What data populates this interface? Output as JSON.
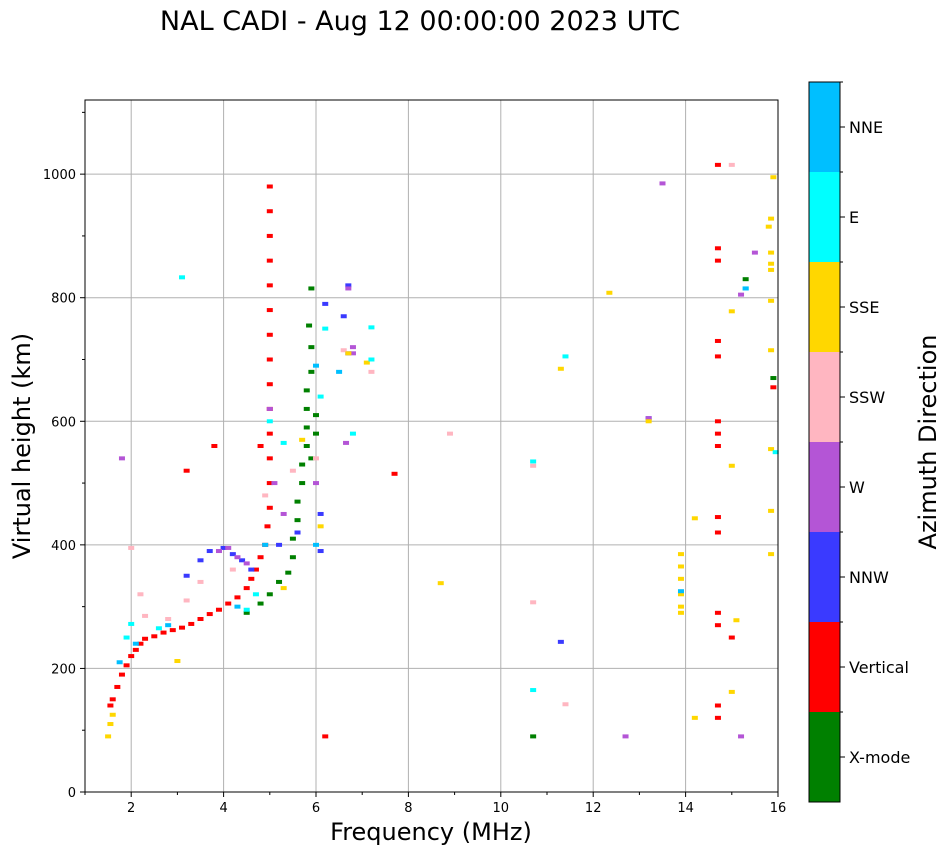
{
  "chart_data": {
    "type": "scatter",
    "title": "NAL CADI - Aug 12 00:00:00 2023 UTC",
    "xlabel": "Frequency (MHz)",
    "ylabel": "Virtual height (km)",
    "xlim": [
      1,
      16
    ],
    "ylim": [
      0,
      1120
    ],
    "xticks": [
      2,
      4,
      6,
      8,
      10,
      12,
      14,
      16
    ],
    "yticks": [
      0,
      200,
      400,
      600,
      800,
      1000
    ],
    "grid": true,
    "colorbar": {
      "label": "Azimuth Direction",
      "categories": [
        {
          "name": "X-mode",
          "color": "#008000"
        },
        {
          "name": "Vertical",
          "color": "#ff0000"
        },
        {
          "name": "NNW",
          "color": "#3a3aff"
        },
        {
          "name": "W",
          "color": "#b455d6"
        },
        {
          "name": "SSW",
          "color": "#ffb6c1"
        },
        {
          "name": "SSE",
          "color": "#ffd700"
        },
        {
          "name": "E",
          "color": "#00ffff"
        },
        {
          "name": "NNE",
          "color": "#00bfff"
        }
      ]
    },
    "series": [
      {
        "name": "Vertical",
        "points": [
          [
            1.55,
            140
          ],
          [
            1.6,
            150
          ],
          [
            1.7,
            170
          ],
          [
            1.8,
            190
          ],
          [
            1.9,
            205
          ],
          [
            2.0,
            220
          ],
          [
            2.1,
            230
          ],
          [
            2.2,
            240
          ],
          [
            2.3,
            248
          ],
          [
            2.5,
            252
          ],
          [
            2.7,
            258
          ],
          [
            2.9,
            262
          ],
          [
            3.1,
            266
          ],
          [
            3.3,
            272
          ],
          [
            3.5,
            280
          ],
          [
            3.7,
            288
          ],
          [
            3.9,
            295
          ],
          [
            4.1,
            305
          ],
          [
            4.3,
            315
          ],
          [
            4.5,
            330
          ],
          [
            4.6,
            345
          ],
          [
            4.7,
            360
          ],
          [
            4.8,
            380
          ],
          [
            4.9,
            400
          ],
          [
            4.95,
            430
          ],
          [
            5.0,
            460
          ],
          [
            5.0,
            500
          ],
          [
            5.0,
            540
          ],
          [
            5.0,
            580
          ],
          [
            5.0,
            620
          ],
          [
            5.0,
            660
          ],
          [
            5.0,
            700
          ],
          [
            5.0,
            740
          ],
          [
            5.0,
            780
          ],
          [
            5.0,
            820
          ],
          [
            5.0,
            860
          ],
          [
            5.0,
            900
          ],
          [
            5.0,
            940
          ],
          [
            5.0,
            980
          ],
          [
            3.2,
            520
          ],
          [
            4.8,
            560
          ],
          [
            3.8,
            560
          ],
          [
            6.2,
            90
          ],
          [
            7.7,
            515
          ],
          [
            14.7,
            1015
          ],
          [
            14.7,
            880
          ],
          [
            14.7,
            860
          ],
          [
            14.7,
            730
          ],
          [
            14.7,
            705
          ],
          [
            14.7,
            600
          ],
          [
            14.7,
            580
          ],
          [
            14.7,
            560
          ],
          [
            14.7,
            445
          ],
          [
            14.7,
            420
          ],
          [
            14.7,
            290
          ],
          [
            14.7,
            270
          ],
          [
            14.7,
            140
          ],
          [
            14.7,
            120
          ],
          [
            15.0,
            250
          ],
          [
            15.9,
            655
          ]
        ]
      },
      {
        "name": "X-mode",
        "points": [
          [
            4.5,
            290
          ],
          [
            4.8,
            305
          ],
          [
            5.0,
            320
          ],
          [
            5.2,
            340
          ],
          [
            5.4,
            355
          ],
          [
            5.5,
            380
          ],
          [
            5.5,
            410
          ],
          [
            5.6,
            440
          ],
          [
            5.6,
            470
          ],
          [
            5.7,
            500
          ],
          [
            5.7,
            530
          ],
          [
            5.8,
            560
          ],
          [
            5.8,
            590
          ],
          [
            5.8,
            620
          ],
          [
            5.8,
            650
          ],
          [
            5.9,
            680
          ],
          [
            6.0,
            610
          ],
          [
            6.0,
            580
          ],
          [
            5.9,
            540
          ],
          [
            5.9,
            720
          ],
          [
            5.85,
            755
          ],
          [
            5.9,
            815
          ],
          [
            10.7,
            90
          ],
          [
            15.3,
            830
          ],
          [
            15.9,
            670
          ]
        ]
      },
      {
        "name": "NNW",
        "points": [
          [
            3.2,
            350
          ],
          [
            3.5,
            375
          ],
          [
            3.7,
            390
          ],
          [
            4.0,
            395
          ],
          [
            4.2,
            385
          ],
          [
            4.4,
            375
          ],
          [
            4.6,
            360
          ],
          [
            5.2,
            400
          ],
          [
            5.6,
            420
          ],
          [
            6.1,
            390
          ],
          [
            6.2,
            790
          ],
          [
            6.7,
            820
          ],
          [
            6.6,
            770
          ],
          [
            6.7,
            710
          ],
          [
            13.2,
            605
          ],
          [
            11.3,
            243
          ],
          [
            6.1,
            450
          ]
        ]
      },
      {
        "name": "W",
        "points": [
          [
            3.9,
            390
          ],
          [
            4.1,
            395
          ],
          [
            4.3,
            380
          ],
          [
            4.5,
            370
          ],
          [
            5.1,
            500
          ],
          [
            5.0,
            620
          ],
          [
            5.3,
            450
          ],
          [
            6.0,
            500
          ],
          [
            6.65,
            565
          ],
          [
            6.7,
            815
          ],
          [
            6.8,
            710
          ],
          [
            6.8,
            720
          ],
          [
            13.5,
            985
          ],
          [
            12.7,
            90
          ],
          [
            15.2,
            90
          ],
          [
            15.5,
            873
          ],
          [
            15.2,
            805
          ],
          [
            13.2,
            605
          ],
          [
            1.8,
            540
          ]
        ]
      },
      {
        "name": "SSW",
        "points": [
          [
            2.0,
            395
          ],
          [
            2.2,
            320
          ],
          [
            2.3,
            285
          ],
          [
            2.8,
            280
          ],
          [
            3.2,
            310
          ],
          [
            3.5,
            340
          ],
          [
            4.2,
            360
          ],
          [
            4.9,
            480
          ],
          [
            5.5,
            520
          ],
          [
            6.0,
            540
          ],
          [
            6.6,
            715
          ],
          [
            7.2,
            680
          ],
          [
            8.9,
            580
          ],
          [
            10.7,
            307
          ],
          [
            10.7,
            528
          ],
          [
            11.4,
            142
          ],
          [
            15.0,
            1015
          ]
        ]
      },
      {
        "name": "SSE",
        "points": [
          [
            1.5,
            90
          ],
          [
            1.55,
            110
          ],
          [
            1.6,
            125
          ],
          [
            3.0,
            212
          ],
          [
            5.3,
            330
          ],
          [
            5.7,
            570
          ],
          [
            6.1,
            430
          ],
          [
            6.7,
            710
          ],
          [
            7.1,
            695
          ],
          [
            8.7,
            338
          ],
          [
            11.3,
            685
          ],
          [
            12.35,
            808
          ],
          [
            13.9,
            385
          ],
          [
            13.9,
            365
          ],
          [
            13.9,
            345
          ],
          [
            13.9,
            320
          ],
          [
            13.9,
            300
          ],
          [
            13.9,
            290
          ],
          [
            14.2,
            443
          ],
          [
            14.2,
            120
          ],
          [
            15.1,
            278
          ],
          [
            15.0,
            162
          ],
          [
            15.0,
            528
          ],
          [
            15.0,
            778
          ],
          [
            15.9,
            995
          ],
          [
            15.85,
            928
          ],
          [
            15.8,
            915
          ],
          [
            15.85,
            873
          ],
          [
            15.85,
            855
          ],
          [
            15.85,
            845
          ],
          [
            15.85,
            795
          ],
          [
            15.85,
            715
          ],
          [
            15.85,
            555
          ],
          [
            15.85,
            455
          ],
          [
            15.85,
            385
          ],
          [
            13.2,
            600
          ]
        ]
      },
      {
        "name": "E",
        "points": [
          [
            1.9,
            250
          ],
          [
            2.0,
            272
          ],
          [
            2.6,
            265
          ],
          [
            3.1,
            833
          ],
          [
            4.5,
            295
          ],
          [
            4.7,
            320
          ],
          [
            5.0,
            600
          ],
          [
            5.3,
            565
          ],
          [
            6.1,
            640
          ],
          [
            6.2,
            750
          ],
          [
            6.8,
            580
          ],
          [
            7.2,
            700
          ],
          [
            7.2,
            752
          ],
          [
            11.4,
            705
          ],
          [
            10.7,
            535
          ],
          [
            10.7,
            165
          ],
          [
            15.3,
            815
          ],
          [
            15.95,
            550
          ]
        ]
      },
      {
        "name": "NNE",
        "points": [
          [
            1.75,
            210
          ],
          [
            2.1,
            240
          ],
          [
            2.8,
            270
          ],
          [
            4.3,
            300
          ],
          [
            4.9,
            400
          ],
          [
            6.0,
            690
          ],
          [
            6.0,
            400
          ],
          [
            6.5,
            680
          ],
          [
            13.9,
            325
          ],
          [
            15.3,
            815
          ]
        ]
      }
    ]
  }
}
